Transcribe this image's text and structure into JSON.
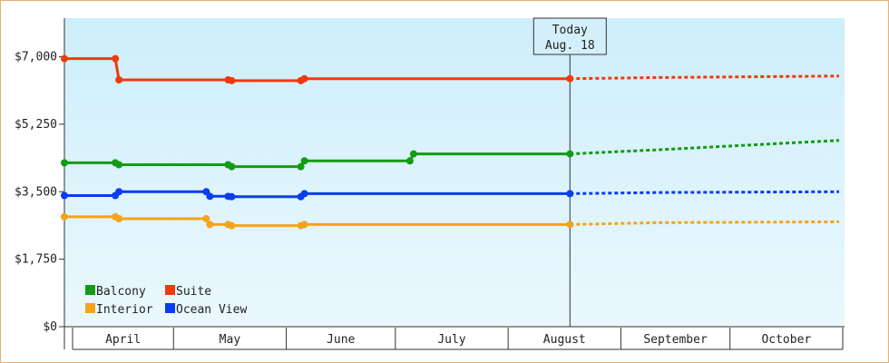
{
  "chart_data": {
    "type": "line",
    "title": "",
    "xlabel": "",
    "ylabel": "",
    "ylim": [
      0,
      8000
    ],
    "yticks": [
      "$0",
      "$1,750",
      "$3,500",
      "$5,250",
      "$7,000"
    ],
    "ytick_values": [
      0,
      1750,
      3500,
      5250,
      7000
    ],
    "months": [
      {
        "label": "April",
        "start": "2024-04-01",
        "end": "2024-05-01"
      },
      {
        "label": "May",
        "start": "2024-05-01",
        "end": "2024-06-01"
      },
      {
        "label": "June",
        "start": "2024-06-01",
        "end": "2024-07-01"
      },
      {
        "label": "July",
        "start": "2024-07-01",
        "end": "2024-08-01"
      },
      {
        "label": "August",
        "start": "2024-08-01",
        "end": "2024-09-01"
      },
      {
        "label": "September",
        "start": "2024-09-01",
        "end": "2024-10-01"
      },
      {
        "label": "October",
        "start": "2024-10-01",
        "end": "2024-11-01"
      }
    ],
    "today": {
      "label_line1": "Today",
      "label_line2": "Aug. 18",
      "date": "2024-08-18"
    },
    "grid": false,
    "legend_position": "bottom-left",
    "background": {
      "top": "#cdeefb",
      "bottom": "#eaf8fd"
    },
    "series": [
      {
        "name": "Balcony",
        "color": "#149b14",
        "points": [
          [
            "2024-04-01",
            4250
          ],
          [
            "2024-04-15",
            4250
          ],
          [
            "2024-04-16",
            4200
          ],
          [
            "2024-05-16",
            4200
          ],
          [
            "2024-05-17",
            4150
          ],
          [
            "2024-06-05",
            4150
          ],
          [
            "2024-06-06",
            4300
          ],
          [
            "2024-07-05",
            4300
          ],
          [
            "2024-07-06",
            4480
          ],
          [
            "2024-08-18",
            4480
          ]
        ],
        "markers": [
          [
            "2024-04-01",
            4250
          ],
          [
            "2024-04-15",
            4250
          ],
          [
            "2024-04-16",
            4200
          ],
          [
            "2024-05-16",
            4200
          ],
          [
            "2024-05-17",
            4150
          ],
          [
            "2024-06-05",
            4150
          ],
          [
            "2024-06-06",
            4300
          ],
          [
            "2024-07-05",
            4300
          ],
          [
            "2024-07-06",
            4480
          ],
          [
            "2024-08-18",
            4480
          ]
        ],
        "forecast": [
          [
            "2024-08-18",
            4480
          ],
          [
            "2024-09-12",
            4590
          ],
          [
            "2024-10-31",
            4830
          ]
        ]
      },
      {
        "name": "Suite",
        "color": "#ee3a0c",
        "points": [
          [
            "2024-04-01",
            6950
          ],
          [
            "2024-04-15",
            6950
          ],
          [
            "2024-04-16",
            6400
          ],
          [
            "2024-05-16",
            6400
          ],
          [
            "2024-05-17",
            6380
          ],
          [
            "2024-06-05",
            6380
          ],
          [
            "2024-06-06",
            6430
          ],
          [
            "2024-08-18",
            6430
          ]
        ],
        "markers": [
          [
            "2024-04-01",
            6950
          ],
          [
            "2024-04-15",
            6950
          ],
          [
            "2024-04-16",
            6400
          ],
          [
            "2024-05-16",
            6400
          ],
          [
            "2024-05-17",
            6380
          ],
          [
            "2024-06-05",
            6380
          ],
          [
            "2024-06-06",
            6430
          ],
          [
            "2024-08-18",
            6430
          ]
        ],
        "forecast": [
          [
            "2024-08-18",
            6430
          ],
          [
            "2024-09-12",
            6460
          ],
          [
            "2024-10-31",
            6500
          ]
        ]
      },
      {
        "name": "Interior",
        "color": "#f5a31a",
        "points": [
          [
            "2024-04-01",
            2850
          ],
          [
            "2024-04-15",
            2850
          ],
          [
            "2024-04-16",
            2800
          ],
          [
            "2024-05-10",
            2800
          ],
          [
            "2024-05-11",
            2650
          ],
          [
            "2024-05-16",
            2650
          ],
          [
            "2024-05-17",
            2620
          ],
          [
            "2024-06-05",
            2620
          ],
          [
            "2024-06-06",
            2650
          ],
          [
            "2024-08-18",
            2650
          ]
        ],
        "markers": [
          [
            "2024-04-01",
            2850
          ],
          [
            "2024-04-15",
            2850
          ],
          [
            "2024-04-16",
            2800
          ],
          [
            "2024-05-10",
            2800
          ],
          [
            "2024-05-11",
            2650
          ],
          [
            "2024-05-16",
            2650
          ],
          [
            "2024-05-17",
            2620
          ],
          [
            "2024-06-05",
            2620
          ],
          [
            "2024-06-06",
            2650
          ],
          [
            "2024-08-18",
            2650
          ]
        ],
        "forecast": [
          [
            "2024-08-18",
            2650
          ],
          [
            "2024-09-12",
            2700
          ],
          [
            "2024-10-31",
            2720
          ]
        ]
      },
      {
        "name": "Ocean View",
        "color": "#0a3cf2",
        "points": [
          [
            "2024-04-01",
            3400
          ],
          [
            "2024-04-15",
            3400
          ],
          [
            "2024-04-16",
            3500
          ],
          [
            "2024-05-10",
            3500
          ],
          [
            "2024-05-11",
            3380
          ],
          [
            "2024-05-16",
            3380
          ],
          [
            "2024-05-17",
            3370
          ],
          [
            "2024-06-05",
            3370
          ],
          [
            "2024-06-06",
            3450
          ],
          [
            "2024-08-18",
            3450
          ]
        ],
        "markers": [
          [
            "2024-04-01",
            3400
          ],
          [
            "2024-04-15",
            3400
          ],
          [
            "2024-04-16",
            3500
          ],
          [
            "2024-05-10",
            3500
          ],
          [
            "2024-05-11",
            3380
          ],
          [
            "2024-05-16",
            3380
          ],
          [
            "2024-05-17",
            3370
          ],
          [
            "2024-06-05",
            3370
          ],
          [
            "2024-06-06",
            3450
          ],
          [
            "2024-08-18",
            3450
          ]
        ],
        "forecast": [
          [
            "2024-08-18",
            3450
          ],
          [
            "2024-09-12",
            3480
          ],
          [
            "2024-10-31",
            3500
          ]
        ]
      }
    ],
    "legend": [
      {
        "name": "Balcony",
        "color": "#149b14"
      },
      {
        "name": "Suite",
        "color": "#ee3a0c"
      },
      {
        "name": "Interior",
        "color": "#f5a31a"
      },
      {
        "name": "Ocean View",
        "color": "#0a3cf2"
      }
    ]
  }
}
